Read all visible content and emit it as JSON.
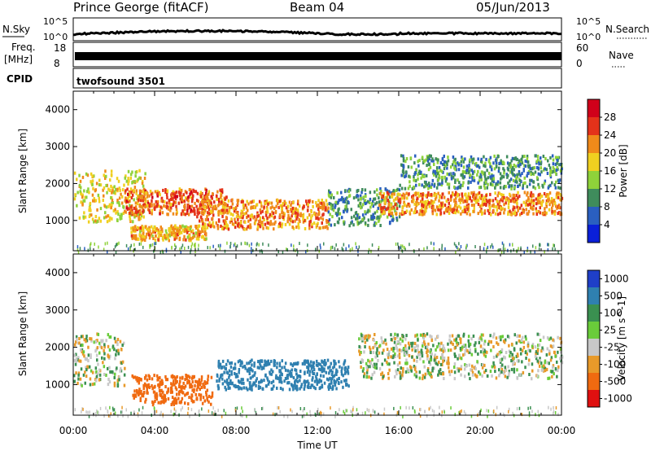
{
  "header": {
    "station": "Prince George (fitACF)",
    "beam": "Beam 04",
    "date": "05/Jun/2013"
  },
  "strips": {
    "noise": {
      "left_label": "N.Sky",
      "right_label": "N.Search",
      "left_ticks": [
        "10^5",
        "10^0"
      ],
      "right_ticks": [
        "10^5",
        "10^0"
      ]
    },
    "freq": {
      "left_label_line1": "Freq.",
      "left_label_line2": "[MHz]",
      "left_ticks": [
        "18",
        "8"
      ],
      "right_label": "Nave",
      "right_ticks": [
        "60",
        "0"
      ]
    },
    "cpid": {
      "label": "CPID",
      "program": "twofsound 3501"
    }
  },
  "chart_data": [
    {
      "type": "heatmap",
      "title": "",
      "xlabel": "",
      "ylabel": "Slant Range [km]",
      "xlim": [
        0,
        24
      ],
      "ylim": [
        180,
        4500
      ],
      "y_ticks": [
        1000,
        2000,
        3000,
        4000
      ],
      "colorbar": {
        "label": "Power [dB]",
        "range": [
          0,
          32
        ],
        "ticks": [
          4,
          8,
          12,
          16,
          20,
          24,
          28
        ],
        "colors": [
          "#0a1fd8",
          "#2a5fc0",
          "#3f8c5c",
          "#8fd23a",
          "#f0d020",
          "#f08a1a",
          "#e4321a",
          "#d0001a"
        ]
      },
      "features": [
        {
          "t0": 0.0,
          "t1": 3.5,
          "r0": 1000,
          "r1": 2400,
          "level_db": 18
        },
        {
          "t0": 2.5,
          "t1": 7.5,
          "r0": 1200,
          "r1": 1900,
          "level_db": 24
        },
        {
          "t0": 2.8,
          "t1": 6.5,
          "r0": 500,
          "r1": 900,
          "level_db": 20
        },
        {
          "t0": 6.0,
          "t1": 12.5,
          "r0": 800,
          "r1": 1600,
          "level_db": 22
        },
        {
          "t0": 12.5,
          "t1": 16.0,
          "r0": 900,
          "r1": 1900,
          "level_db": 10
        },
        {
          "t0": 15.0,
          "t1": 24.0,
          "r0": 1200,
          "r1": 1800,
          "level_db": 22
        },
        {
          "t0": 16.0,
          "t1": 24.0,
          "r0": 1900,
          "r1": 2800,
          "level_db": 10
        }
      ]
    },
    {
      "type": "heatmap",
      "title": "",
      "xlabel": "Time UT",
      "ylabel": "Slant Range [km]",
      "xlim": [
        0,
        24
      ],
      "ylim": [
        180,
        4500
      ],
      "y_ticks": [
        1000,
        2000,
        3000,
        4000
      ],
      "x_tick_labels": [
        "00:00",
        "04:00",
        "08:00",
        "12:00",
        "16:00",
        "20:00",
        "00:00"
      ],
      "colorbar": {
        "label": "Velocity [m s^-1]",
        "tick_labels": [
          "1000",
          "500",
          "100",
          "25",
          "-25",
          "-100",
          "-500",
          "-1000"
        ],
        "colors": [
          "#1f3fc8",
          "#2f80b0",
          "#3a9050",
          "#6acc3a",
          "#c8c8c8",
          "#e89a2a",
          "#f06a10",
          "#e01010"
        ]
      },
      "features": [
        {
          "t0": 0.0,
          "t1": 2.5,
          "r0": 1000,
          "r1": 2400,
          "velocity_ms": 0
        },
        {
          "t0": 2.8,
          "t1": 6.8,
          "r0": 500,
          "r1": 1300,
          "velocity_ms": -300
        },
        {
          "t0": 7.0,
          "t1": 13.5,
          "r0": 900,
          "r1": 1700,
          "velocity_ms": 250
        },
        {
          "t0": 14.0,
          "t1": 24.0,
          "r0": 1200,
          "r1": 2400,
          "velocity_ms": 0
        }
      ]
    }
  ]
}
